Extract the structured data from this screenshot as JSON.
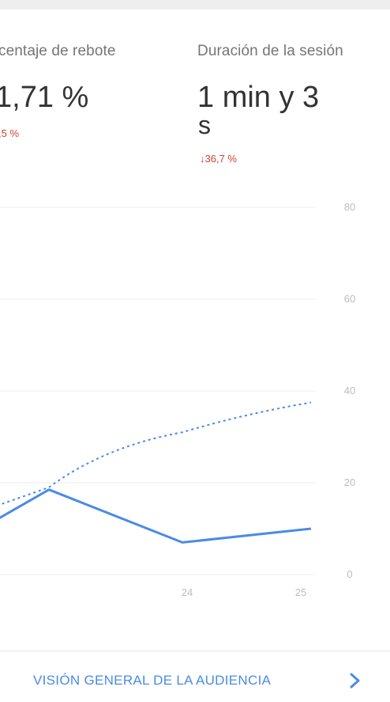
{
  "metrics": [
    {
      "label": "centaje de rebote",
      "value": "1,71 %",
      "change": ",5 %"
    },
    {
      "label": "Duración de la sesión",
      "value_line1": "1 min y 3",
      "value_line2": "s",
      "change": "36,7 %",
      "change_icon": "down-arrow-icon"
    }
  ],
  "colors": {
    "accent": "#4a8be6",
    "negative": "#d23f31",
    "grid": "#ececec",
    "axis_text": "#bdbdbd"
  },
  "footer": {
    "link_label": "VISIÓN GENERAL DE LA AUDIENCIA",
    "chevron_icon": "chevron-right-icon"
  },
  "chart_data": {
    "type": "line",
    "x": [
      "",
      "",
      "24",
      "25"
    ],
    "xtick_labels": [
      "24",
      "25"
    ],
    "yticks": [
      "0",
      "20",
      "40",
      "60",
      "80"
    ],
    "ylim": [
      0,
      80
    ],
    "grid": true,
    "series": [
      {
        "style": "solid",
        "values": [
          12,
          18.5,
          7,
          10
        ]
      },
      {
        "style": "dashed",
        "values": [
          15,
          19,
          31,
          37.5
        ]
      }
    ]
  }
}
